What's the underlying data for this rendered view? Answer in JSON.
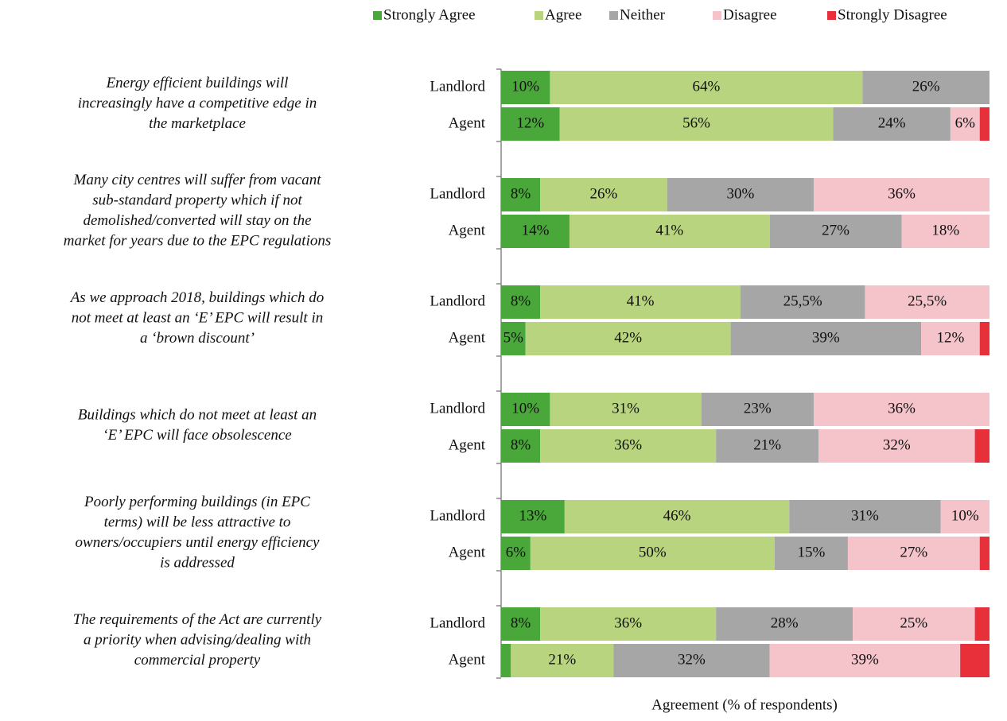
{
  "chart_data": {
    "type": "stacked_bar_horizontal",
    "x_label": "Agreement (% of respondents)",
    "xlim": [
      0,
      100
    ],
    "groups": [
      [
        "Energy efficient buildings will",
        "increasingly have a competitive edge in",
        "the marketplace"
      ],
      [
        "Many city centres will suffer from vacant",
        "sub-standard property which if not",
        "demolished/converted will stay on the",
        "market for years due to the EPC regulations"
      ],
      [
        "As we approach 2018, buildings which do",
        "not meet at least an ‘E’ EPC will result in",
        "a ‘brown discount’"
      ],
      [
        "Buildings which do not meet at least an",
        "‘E’ EPC will face obsolescence"
      ],
      [
        "Poorly performing buildings (in EPC",
        "terms) will be less attractive to",
        "owners/occupiers until energy efficiency",
        "is addressed"
      ],
      [
        "The requirements of the Act are currently",
        "a priority when advising/dealing with",
        "commercial property"
      ]
    ],
    "categories": [
      "Landlord",
      "Agent",
      "Landlord",
      "Agent",
      "Landlord",
      "Agent",
      "Landlord",
      "Agent",
      "Landlord",
      "Agent",
      "Landlord",
      "Agent"
    ],
    "series": [
      {
        "name": "Strongly Agree",
        "color": "#4aa83a",
        "values": [
          10,
          12,
          8,
          14,
          8,
          5,
          10,
          8,
          13,
          6,
          8,
          2
        ],
        "value_labels": [
          "10%",
          "12%",
          "8%",
          "14%",
          "8%",
          "5%",
          "10%",
          "8%",
          "13%",
          "6%",
          "8%",
          null
        ]
      },
      {
        "name": "Agree",
        "color": "#b8d47e",
        "values": [
          64,
          56,
          26,
          41,
          41,
          42,
          31,
          36,
          46,
          50,
          36,
          21
        ],
        "value_labels": [
          "64%",
          "56%",
          "26%",
          "41%",
          "41%",
          "42%",
          "31%",
          "36%",
          "46%",
          "50%",
          "36%",
          "21%"
        ]
      },
      {
        "name": "Neither",
        "color": "#a6a6a6",
        "values": [
          26,
          24,
          30,
          27,
          25.5,
          39,
          23,
          21,
          31,
          15,
          28,
          32
        ],
        "value_labels": [
          "26%",
          "24%",
          "30%",
          "27%",
          "25,5%",
          "39%",
          "23%",
          "21%",
          "31%",
          "15%",
          "28%",
          "32%"
        ]
      },
      {
        "name": "Disagree",
        "color": "#f5c3ca",
        "values": [
          0,
          6,
          36,
          18,
          25.5,
          12,
          36,
          32,
          10,
          27,
          25,
          39
        ],
        "value_labels": [
          null,
          "6%",
          "36%",
          "18%",
          "25,5%",
          "12%",
          "36%",
          "32%",
          "10%",
          "27%",
          "25%",
          "39%"
        ]
      },
      {
        "name": "Strongly Disagree",
        "color": "#e8303a",
        "values": [
          0,
          2,
          0,
          0,
          0,
          2,
          0,
          3,
          0,
          2,
          3,
          6
        ],
        "value_labels": [
          null,
          null,
          null,
          null,
          null,
          null,
          null,
          null,
          null,
          null,
          null,
          null
        ]
      }
    ]
  }
}
